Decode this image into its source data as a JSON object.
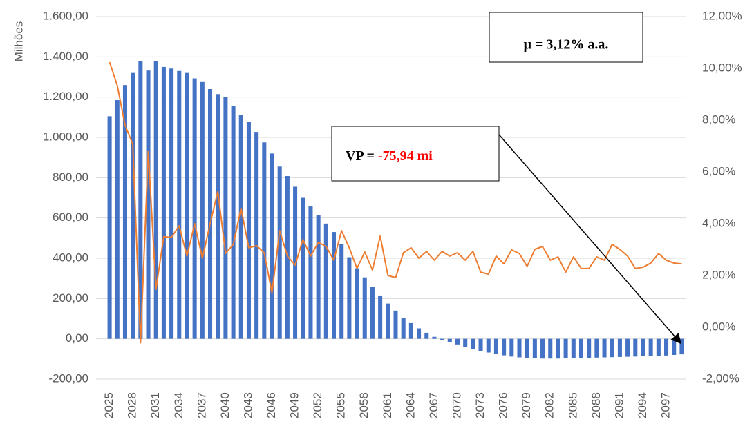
{
  "chart_data": {
    "type": "bar_line",
    "y_label": "Milhões",
    "annotations": [
      {
        "text": "μ = 3,12% a.a."
      },
      {
        "label": "VP =",
        "value": "-75,94 mi",
        "value_color": "#ff0000"
      }
    ],
    "categories": [
      "2025",
      null,
      null,
      "2028",
      null,
      null,
      "2031",
      null,
      null,
      "2034",
      null,
      null,
      "2037",
      null,
      null,
      "2040",
      null,
      null,
      "2043",
      null,
      null,
      "2046",
      null,
      null,
      "2049",
      null,
      null,
      "2052",
      null,
      null,
      "2055",
      null,
      null,
      "2058",
      null,
      null,
      "2061",
      null,
      null,
      "2064",
      null,
      null,
      "2067",
      null,
      null,
      "2070",
      null,
      null,
      "2073",
      null,
      null,
      "2076",
      null,
      null,
      "2079",
      null,
      null,
      "2082",
      null,
      null,
      "2085",
      null,
      null,
      "2088",
      null,
      null,
      "2091",
      null,
      null,
      "2094",
      null,
      null,
      "2097",
      null,
      null
    ],
    "series": [
      {
        "kind": "bar",
        "color": "#4472c4",
        "values": [
          1105,
          1185,
          1260,
          1320,
          1378,
          1332,
          1378,
          1350,
          1342,
          1330,
          1320,
          1293,
          1275,
          1240,
          1215,
          1200,
          1157,
          1110,
          1078,
          1027,
          975,
          920,
          855,
          808,
          755,
          700,
          657,
          613,
          572,
          530,
          470,
          405,
          350,
          305,
          258,
          215,
          175,
          140,
          105,
          78,
          52,
          30,
          10,
          -5,
          -18,
          -28,
          -40,
          -52,
          -60,
          -68,
          -75,
          -82,
          -88,
          -92,
          -95,
          -97,
          -98,
          -98,
          -98,
          -97,
          -96,
          -95,
          -94,
          -93,
          -92,
          -91,
          -90,
          -89,
          -88,
          -87,
          -86,
          -85,
          -83,
          -80,
          -77
        ]
      },
      {
        "kind": "line",
        "axis": "y2",
        "color": "#ed7d31",
        "values": [
          10.24,
          9.33,
          7.8,
          7.07,
          -0.6,
          6.8,
          1.47,
          3.5,
          3.47,
          3.92,
          2.75,
          4.0,
          2.67,
          4.0,
          5.25,
          2.85,
          3.2,
          4.6,
          3.07,
          3.15,
          2.88,
          1.33,
          3.73,
          2.75,
          2.4,
          3.39,
          2.75,
          3.28,
          3.12,
          2.59,
          3.73,
          3.07,
          2.27,
          2.91,
          2.21,
          3.52,
          2.0,
          1.92,
          2.88,
          3.07,
          2.67,
          2.93,
          2.59,
          2.93,
          2.75,
          2.88,
          2.59,
          2.93,
          2.13,
          2.05,
          2.75,
          2.45,
          2.99,
          2.85,
          2.35,
          3.01,
          3.12,
          2.59,
          2.72,
          2.13,
          2.72,
          2.27,
          2.27,
          2.72,
          2.59,
          3.2,
          3.01,
          2.75,
          2.27,
          2.32,
          2.48,
          2.85,
          2.59,
          2.48,
          2.45
        ]
      }
    ],
    "ylim": [
      -200,
      1600
    ],
    "yticks": [
      {
        "value": -200,
        "label": "-200,00"
      },
      {
        "value": 0,
        "label": "0,00"
      },
      {
        "value": 200,
        "label": "200,00"
      },
      {
        "value": 400,
        "label": "400,00"
      },
      {
        "value": 600,
        "label": "600,00"
      },
      {
        "value": 800,
        "label": "800,00"
      },
      {
        "value": 1000,
        "label": "1.000,00"
      },
      {
        "value": 1200,
        "label": "1.200,00"
      },
      {
        "value": 1400,
        "label": "1.400,00"
      },
      {
        "value": 1600,
        "label": "1.600,00"
      }
    ],
    "y2lim": [
      -2,
      12
    ],
    "y2ticks": [
      {
        "value": -2,
        "label": "-2,00%"
      },
      {
        "value": 0,
        "label": "0,00%"
      },
      {
        "value": 2,
        "label": "2,00%"
      },
      {
        "value": 4,
        "label": "4,00%"
      },
      {
        "value": 6,
        "label": "6,00%"
      },
      {
        "value": 8,
        "label": "8,00%"
      },
      {
        "value": 10,
        "label": "10,00%"
      },
      {
        "value": 12,
        "label": "12,00%"
      }
    ],
    "grid": true
  }
}
